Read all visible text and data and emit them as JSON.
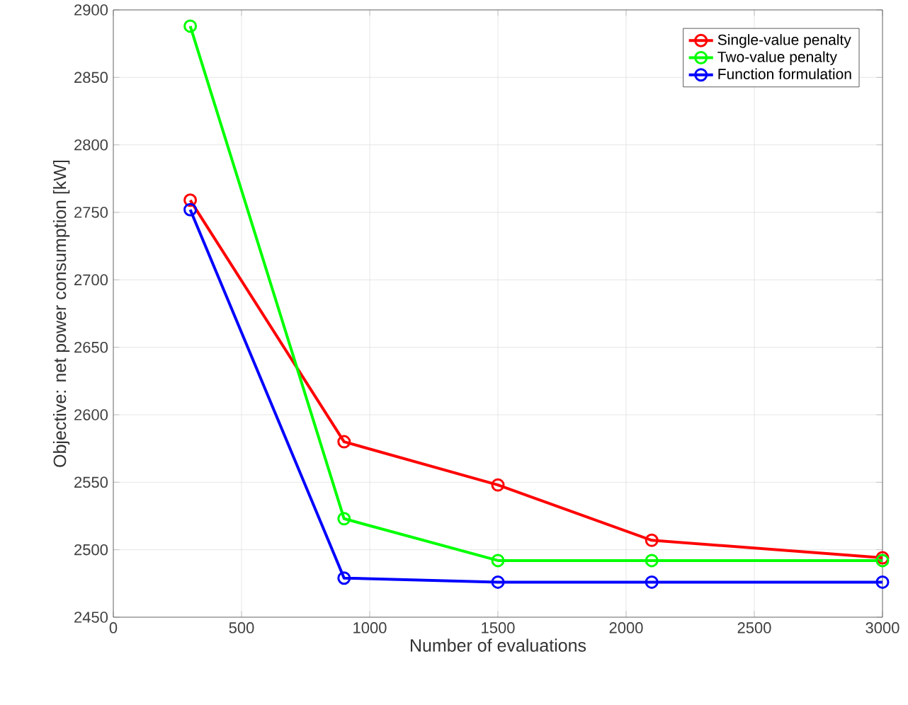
{
  "chart_data": {
    "type": "line",
    "xlabel": "Number of evaluations",
    "ylabel": "Objective: net power consumption [kW]",
    "x": [
      300,
      900,
      1500,
      2100,
      3000
    ],
    "series": [
      {
        "name": "Single-value penalty",
        "color": "#ff0000",
        "values": [
          2759,
          2580,
          2548,
          2507,
          2494
        ]
      },
      {
        "name": "Two-value penalty",
        "color": "#00ff00",
        "values": [
          2888,
          2523,
          2492,
          2492,
          2492
        ]
      },
      {
        "name": "Function formulation",
        "color": "#0000ff",
        "values": [
          2752,
          2479,
          2476,
          2476,
          2476
        ]
      }
    ],
    "xlim": [
      0,
      3000
    ],
    "ylim": [
      2450,
      2900
    ],
    "xticks": [
      0,
      500,
      1000,
      1500,
      2000,
      2500,
      3000
    ],
    "yticks": [
      2450,
      2500,
      2550,
      2600,
      2650,
      2700,
      2750,
      2800,
      2850,
      2900
    ],
    "grid": true,
    "legend": "top right",
    "marker": "circle",
    "line_style": "solid"
  }
}
